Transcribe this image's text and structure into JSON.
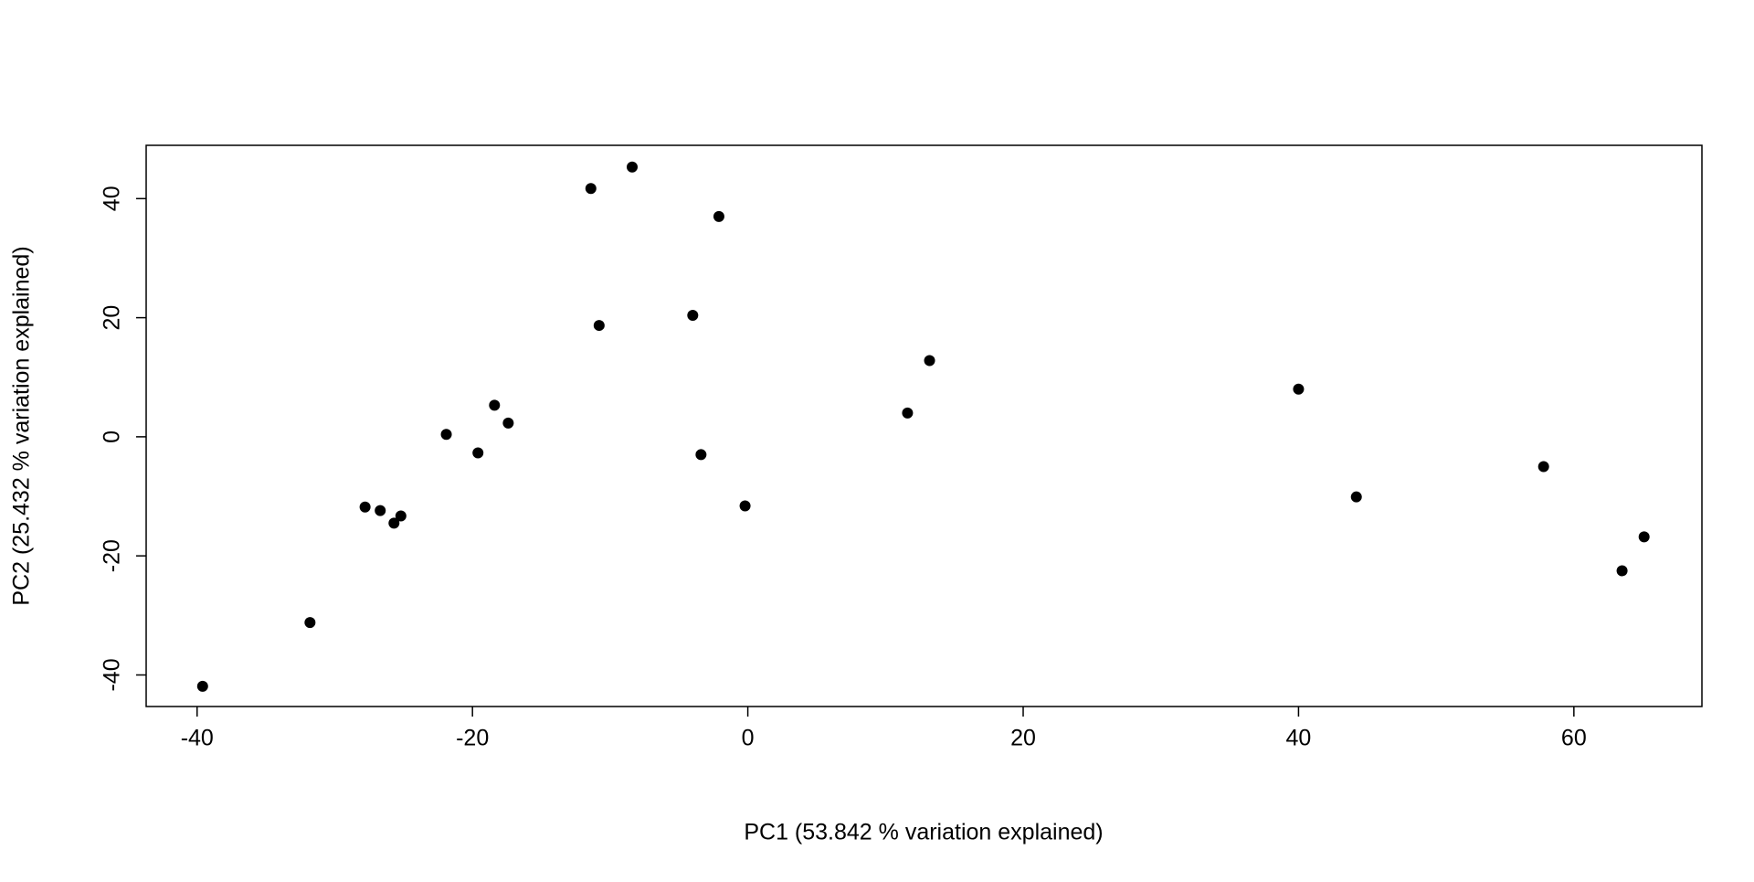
{
  "chart_data": {
    "type": "scatter",
    "x_label": "PC1 (53.842 % variation explained)",
    "y_label": "PC2 (25.432 % variation explained)",
    "color": "#000000",
    "x": [
      -39.6,
      -31.8,
      -27.8,
      -26.7,
      -25.7,
      -25.2,
      -21.9,
      -19.6,
      -18.4,
      -17.4,
      -11.4,
      -10.8,
      -8.4,
      -4.0,
      -3.4,
      -2.1,
      -0.2,
      11.6,
      13.2,
      40.0,
      44.2,
      57.8,
      63.5,
      65.1
    ],
    "values": [
      -41.9,
      -31.2,
      -11.8,
      -12.4,
      -14.5,
      -13.3,
      0.4,
      -2.7,
      5.3,
      2.3,
      41.7,
      18.7,
      45.3,
      20.4,
      -3.0,
      37.0,
      -11.6,
      4.0,
      12.8,
      8.0,
      -10.1,
      -5.0,
      -22.5,
      -16.8
    ],
    "xlim": [
      -43.7,
      69.3
    ],
    "ylim": [
      -45.3,
      48.95
    ],
    "xticks": [
      -40,
      -20,
      0,
      20,
      40,
      60
    ],
    "yticks": [
      -40,
      -20,
      0,
      20,
      40
    ]
  }
}
